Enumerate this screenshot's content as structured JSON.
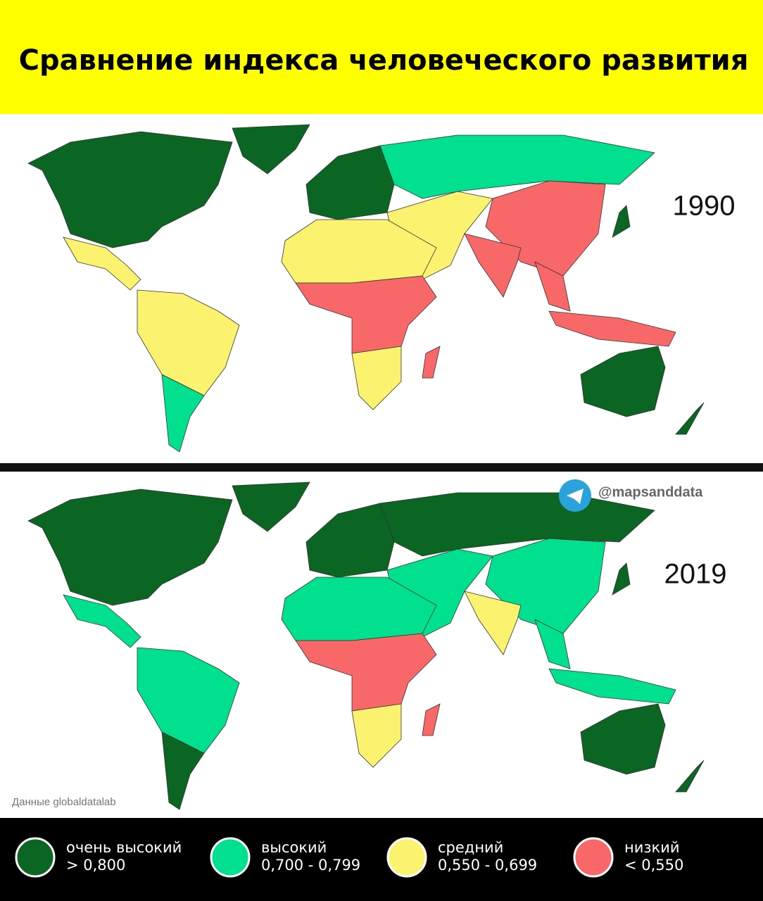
{
  "header": {
    "title": "Сравнение индекса человеческого развития"
  },
  "maps": [
    {
      "year": "1990"
    },
    {
      "year": "2019"
    }
  ],
  "watermark": "@mapsanddata",
  "source": "Данные globaldatalab",
  "legend": [
    {
      "color": "#0b6623",
      "label": "очень высокий",
      "range": "> 0,800"
    },
    {
      "color": "#00e08f",
      "label": "высокий",
      "range": "0,700 - 0,799"
    },
    {
      "color": "#fbf36f",
      "label": "средний",
      "range": "0,550 - 0,699"
    },
    {
      "color": "#f96868",
      "label": "низкий",
      "range": "< 0,550"
    }
  ]
}
